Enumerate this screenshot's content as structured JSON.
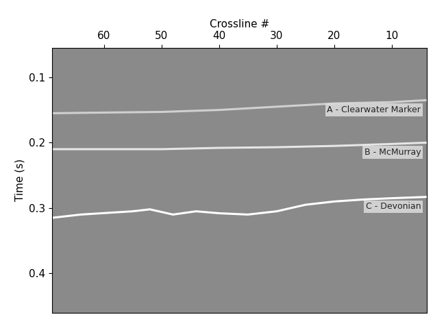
{
  "chart_data": {
    "type": "line",
    "xlabel": "Crossline #",
    "ylabel": "Time (s)",
    "xlim": [
      69,
      4
    ],
    "xticks": [
      60,
      50,
      40,
      30,
      20,
      10
    ],
    "ylim": [
      0.46,
      0.055
    ],
    "yticks": [
      0.1,
      0.2,
      0.3,
      0.4
    ],
    "grid": false,
    "series": [
      {
        "name": "A - Clearwater Marker",
        "color": "#d0d0d0",
        "x": [
          69,
          60,
          50,
          40,
          30,
          20,
          10,
          4
        ],
        "values": [
          0.155,
          0.154,
          0.153,
          0.15,
          0.145,
          0.14,
          0.138,
          0.135
        ]
      },
      {
        "name": "B - McMurray",
        "color": "#e6e6e6",
        "x": [
          69,
          60,
          50,
          40,
          30,
          20,
          10,
          4
        ],
        "values": [
          0.21,
          0.21,
          0.21,
          0.208,
          0.207,
          0.205,
          0.202,
          0.2
        ]
      },
      {
        "name": "C - Devonian",
        "color": "#ffffff",
        "x": [
          69,
          64,
          55,
          52,
          48,
          44,
          40,
          35,
          30,
          25,
          20,
          15,
          10,
          4
        ],
        "values": [
          0.315,
          0.31,
          0.305,
          0.302,
          0.31,
          0.305,
          0.308,
          0.31,
          0.305,
          0.295,
          0.29,
          0.287,
          0.285,
          0.283
        ]
      }
    ]
  }
}
